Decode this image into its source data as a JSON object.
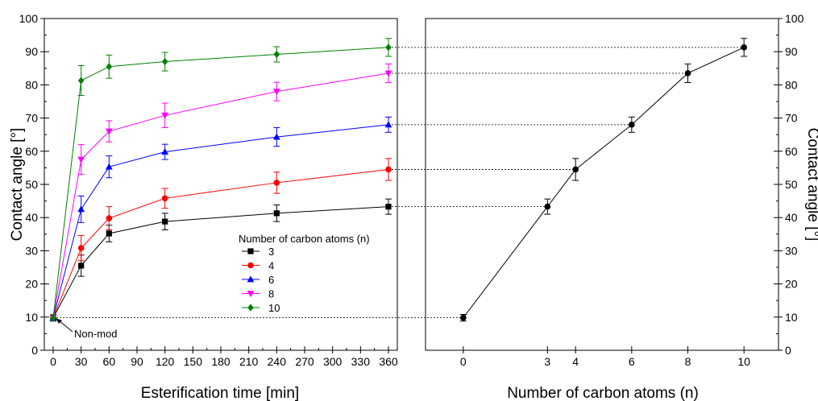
{
  "chart_data": [
    {
      "type": "line",
      "xlabel": "Esterification time [min]",
      "ylabel": "Contact angle [°]",
      "xlim": [
        0,
        360
      ],
      "ylim": [
        0,
        100
      ],
      "xticks": [
        "0",
        "30",
        "60",
        "90",
        "120",
        "150",
        "180",
        "210",
        "240",
        "270",
        "300",
        "330",
        "360"
      ],
      "yticks": [
        "0",
        "10",
        "20",
        "30",
        "40",
        "50",
        "60",
        "70",
        "80",
        "90",
        "100"
      ],
      "grid": false,
      "legend": {
        "title": "Number of carbon atoms (n)",
        "placement": "center-right"
      },
      "annotation": "Non-mod",
      "x": [
        0,
        30,
        60,
        120,
        240,
        360
      ],
      "series": [
        {
          "name": "3",
          "color": "#000000",
          "marker": "square",
          "values": [
            9.8,
            25.5,
            35.2,
            38.8,
            41.3,
            43.3
          ],
          "errors": [
            1.0,
            3.2,
            2.5,
            2.5,
            2.5,
            2.3
          ]
        },
        {
          "name": "4",
          "color": "#ff0000",
          "marker": "circle",
          "values": [
            9.8,
            30.8,
            39.8,
            45.8,
            50.5,
            54.5
          ],
          "errors": [
            1.0,
            3.8,
            3.5,
            3.0,
            3.2,
            3.3
          ]
        },
        {
          "name": "6",
          "color": "#0000ff",
          "marker": "triangle-up",
          "values": [
            9.8,
            42.5,
            55.3,
            59.8,
            64.3,
            68.0
          ],
          "errors": [
            1.0,
            4.0,
            3.3,
            2.3,
            2.8,
            2.3
          ]
        },
        {
          "name": "8",
          "color": "#ff00ff",
          "marker": "triangle-down",
          "values": [
            9.8,
            57.5,
            66.0,
            70.8,
            78.0,
            83.5
          ],
          "errors": [
            1.0,
            4.5,
            3.2,
            3.7,
            2.8,
            2.8
          ]
        },
        {
          "name": "10",
          "color": "#008000",
          "marker": "diamond",
          "values": [
            9.8,
            81.3,
            85.5,
            87.0,
            89.2,
            91.3
          ],
          "errors": [
            1.0,
            4.5,
            3.5,
            2.8,
            2.3,
            2.7
          ]
        }
      ]
    },
    {
      "type": "line",
      "xlabel": "Number of carbon atoms (n)",
      "ylabel": "Contact angle [°]",
      "xlim": [
        -1,
        11
      ],
      "ylim": [
        0,
        100
      ],
      "yaxis_side": "right",
      "xticks": [
        "0",
        "3",
        "4",
        "6",
        "8",
        "10"
      ],
      "yticks": [
        "0",
        "10",
        "20",
        "30",
        "40",
        "50",
        "60",
        "70",
        "80",
        "90",
        "100"
      ],
      "grid": false,
      "reference_lines": "dotted horizontal lines linking the 360 min values to the right panel",
      "x": [
        0,
        3,
        4,
        6,
        8,
        10
      ],
      "series": [
        {
          "color": "#000000",
          "marker": "circle",
          "values": [
            9.8,
            43.3,
            54.5,
            68.0,
            83.5,
            91.3
          ],
          "errors": [
            1.0,
            2.3,
            3.3,
            2.3,
            2.8,
            2.7
          ]
        }
      ]
    }
  ]
}
